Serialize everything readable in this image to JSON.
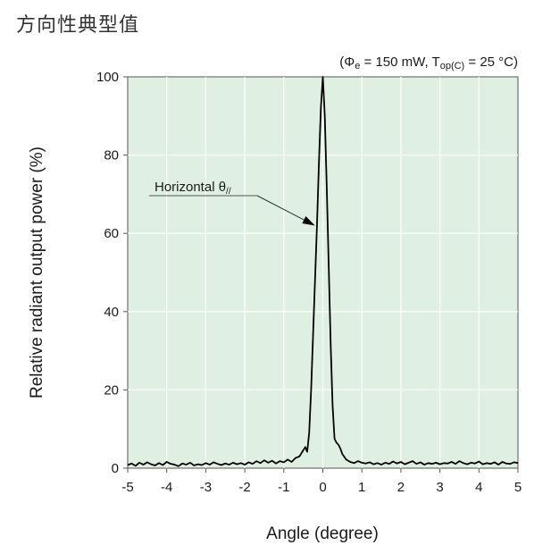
{
  "page": {
    "title": "方向性典型值"
  },
  "chart_data": {
    "type": "line",
    "title": "",
    "conditions": {
      "open": "(",
      "phi": "Φ",
      "phi_sub": "e",
      "phi_value": " = 150 mW, T",
      "temp_sub": "op(C)",
      "temp_value": " = 25 °C)"
    },
    "xlabel": "Angle (degree)",
    "ylabel": "Relative radiant output power (%)",
    "xlim": [
      -5,
      5
    ],
    "ylim": [
      0,
      100
    ],
    "x_ticks": [
      -5,
      -4,
      -3,
      -2,
      -1,
      0,
      1,
      2,
      3,
      4,
      5
    ],
    "y_ticks": [
      0,
      20,
      40,
      60,
      80,
      100
    ],
    "grid": true,
    "background_color": "#dff0e2",
    "grid_color": "#ffffff",
    "line_color": "#000000",
    "annotation": {
      "text": "Horizontal θ",
      "sub": "//",
      "points_to": {
        "x": -0.2,
        "y": 62
      }
    },
    "series": [
      {
        "x": [
          -5.0,
          -4.9,
          -4.8,
          -4.7,
          -4.6,
          -4.5,
          -4.4,
          -4.3,
          -4.2,
          -4.1,
          -4.0,
          -3.9,
          -3.8,
          -3.7,
          -3.6,
          -3.5,
          -3.4,
          -3.3,
          -3.2,
          -3.1,
          -3.0,
          -2.9,
          -2.8,
          -2.7,
          -2.6,
          -2.5,
          -2.4,
          -2.3,
          -2.2,
          -2.1,
          -2.0,
          -1.9,
          -1.8,
          -1.7,
          -1.6,
          -1.5,
          -1.4,
          -1.3,
          -1.2,
          -1.1,
          -1.0,
          -0.9,
          -0.8,
          -0.7,
          -0.6,
          -0.5,
          -0.45,
          -0.4,
          -0.35,
          -0.3,
          -0.25,
          -0.2,
          -0.15,
          -0.1,
          -0.05,
          0.0,
          0.05,
          0.1,
          0.15,
          0.2,
          0.25,
          0.3,
          0.35,
          0.4,
          0.45,
          0.5,
          0.6,
          0.7,
          0.8,
          0.9,
          1.0,
          1.1,
          1.2,
          1.3,
          1.4,
          1.5,
          1.6,
          1.7,
          1.8,
          1.9,
          2.0,
          2.1,
          2.2,
          2.3,
          2.4,
          2.5,
          2.6,
          2.7,
          2.8,
          2.9,
          3.0,
          3.1,
          3.2,
          3.3,
          3.4,
          3.5,
          3.6,
          3.7,
          3.8,
          3.9,
          4.0,
          4.1,
          4.2,
          4.3,
          4.4,
          4.5,
          4.6,
          4.7,
          4.8,
          4.9,
          5.0
        ],
        "y": [
          0.8,
          1.2,
          0.6,
          1.4,
          0.9,
          1.5,
          1.0,
          0.7,
          1.3,
          0.8,
          1.6,
          1.1,
          0.9,
          0.5,
          1.2,
          0.9,
          1.4,
          0.7,
          1.0,
          0.8,
          1.3,
          0.9,
          1.5,
          1.1,
          0.8,
          1.2,
          0.9,
          1.4,
          1.0,
          1.3,
          0.9,
          1.5,
          1.1,
          1.8,
          1.3,
          2.0,
          1.4,
          1.9,
          1.2,
          1.8,
          1.5,
          2.2,
          1.6,
          2.6,
          3.0,
          4.6,
          5.4,
          4.2,
          9.0,
          20.0,
          34.0,
          48.0,
          62.0,
          78.0,
          92.0,
          100.0,
          90.0,
          72.0,
          52.0,
          32.0,
          16.0,
          7.5,
          6.5,
          6.0,
          5.0,
          3.6,
          2.2,
          1.6,
          1.3,
          1.8,
          1.4,
          1.2,
          1.5,
          1.0,
          1.3,
          0.9,
          1.4,
          1.1,
          1.7,
          1.2,
          1.6,
          1.0,
          1.4,
          1.8,
          1.1,
          1.5,
          0.9,
          1.3,
          1.1,
          1.4,
          1.0,
          1.3,
          1.2,
          1.6,
          1.1,
          1.8,
          1.3,
          1.0,
          1.4,
          1.2,
          1.7,
          1.0,
          1.3,
          1.1,
          1.5,
          0.9,
          1.6,
          1.2,
          1.1,
          1.5,
          1.3
        ]
      }
    ]
  }
}
